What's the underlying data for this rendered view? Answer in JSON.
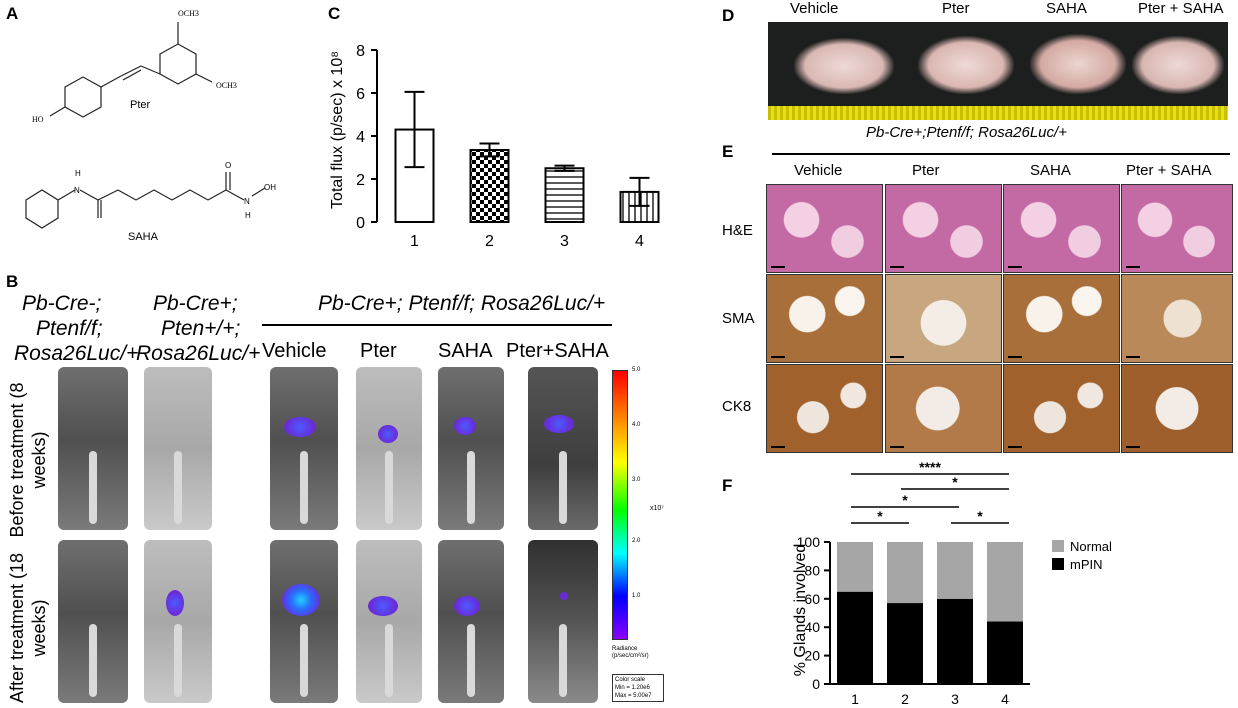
{
  "panels": {
    "a": "A",
    "b": "B",
    "c": "C",
    "d": "D",
    "e": "E",
    "f": "F"
  },
  "panel_a": {
    "pter_label": "Pter",
    "saha_label": "SAHA",
    "och3_top": "OCH3",
    "och3_right": "OCH3",
    "ho": "HO",
    "h_left": "H",
    "n_left": "N",
    "oh": "OH",
    "h_right": "H",
    "n_right": "N",
    "o_right": "O"
  },
  "panel_b": {
    "col1_l1": "Pb-Cre-;",
    "col1_l2": "Ptenf/f;",
    "col1_l3": "Rosa26Luc/+",
    "col2_l1": "Pb-Cre+;",
    "col2_l2": "Pten+/+;",
    "col2_l3": "Rosa26Luc/+",
    "group_title": "Pb-Cre+; Ptenf/f; Rosa26Luc/+",
    "treatments": [
      "Vehicle",
      "Pter",
      "SAHA",
      "Pter+SAHA"
    ],
    "row1": "Before treatment (8 weeks)",
    "row2": "After treatment (18 weeks)",
    "scale_ticks": [
      "5.0",
      "4.0",
      "3.0",
      "2.0",
      "1.0"
    ],
    "scale_multiplier": "x10⁷",
    "radiance": "Radiance (p/sec/cm²/sr)",
    "color_scale": "Color scale",
    "min": "Min = 1.20e6",
    "max": "Max = 5.00e7"
  },
  "chart_data": [
    {
      "type": "bar",
      "panel": "C",
      "ylabel": "Total flux (p/sec) x 10⁸",
      "categories": [
        "1",
        "2",
        "3",
        "4"
      ],
      "values": [
        4.3,
        3.35,
        2.5,
        1.4
      ],
      "errors": [
        1.75,
        0.3,
        0.12,
        0.65
      ],
      "patterns": [
        "none",
        "checker",
        "horizontal",
        "vertical"
      ],
      "ylim": [
        0,
        8
      ],
      "yticks": [
        0,
        2,
        4,
        6,
        8
      ]
    },
    {
      "type": "bar",
      "panel": "F",
      "stacked": true,
      "ylabel": "% Glands involved",
      "categories": [
        "1",
        "2",
        "3",
        "4"
      ],
      "series": [
        {
          "name": "mPIN",
          "values": [
            65,
            57,
            60,
            44
          ],
          "color": "#000000"
        },
        {
          "name": "Normal",
          "values": [
            35,
            43,
            40,
            56
          ],
          "color": "#a6a6a6"
        }
      ],
      "ylim": [
        0,
        100
      ],
      "yticks": [
        0,
        20,
        40,
        60,
        80,
        100
      ],
      "significance": [
        {
          "from": "1",
          "to": "4",
          "label": "****"
        },
        {
          "from": "2",
          "to": "4",
          "label": "*"
        },
        {
          "from": "1",
          "to": "3",
          "label": "*"
        },
        {
          "from": "1",
          "to": "2",
          "label": "*"
        },
        {
          "from": "3",
          "to": "4",
          "label": "*"
        }
      ]
    }
  ],
  "panel_d": {
    "labels": [
      "Vehicle",
      "Pter",
      "SAHA",
      "Pter + SAHA"
    ]
  },
  "panel_e": {
    "title": "Pb-Cre+;Ptenf/f; Rosa26Luc/+",
    "cols": [
      "Vehicle",
      "Pter",
      "SAHA",
      "Pter + SAHA"
    ],
    "rows": [
      "H&E",
      "SMA",
      "CK8"
    ]
  }
}
